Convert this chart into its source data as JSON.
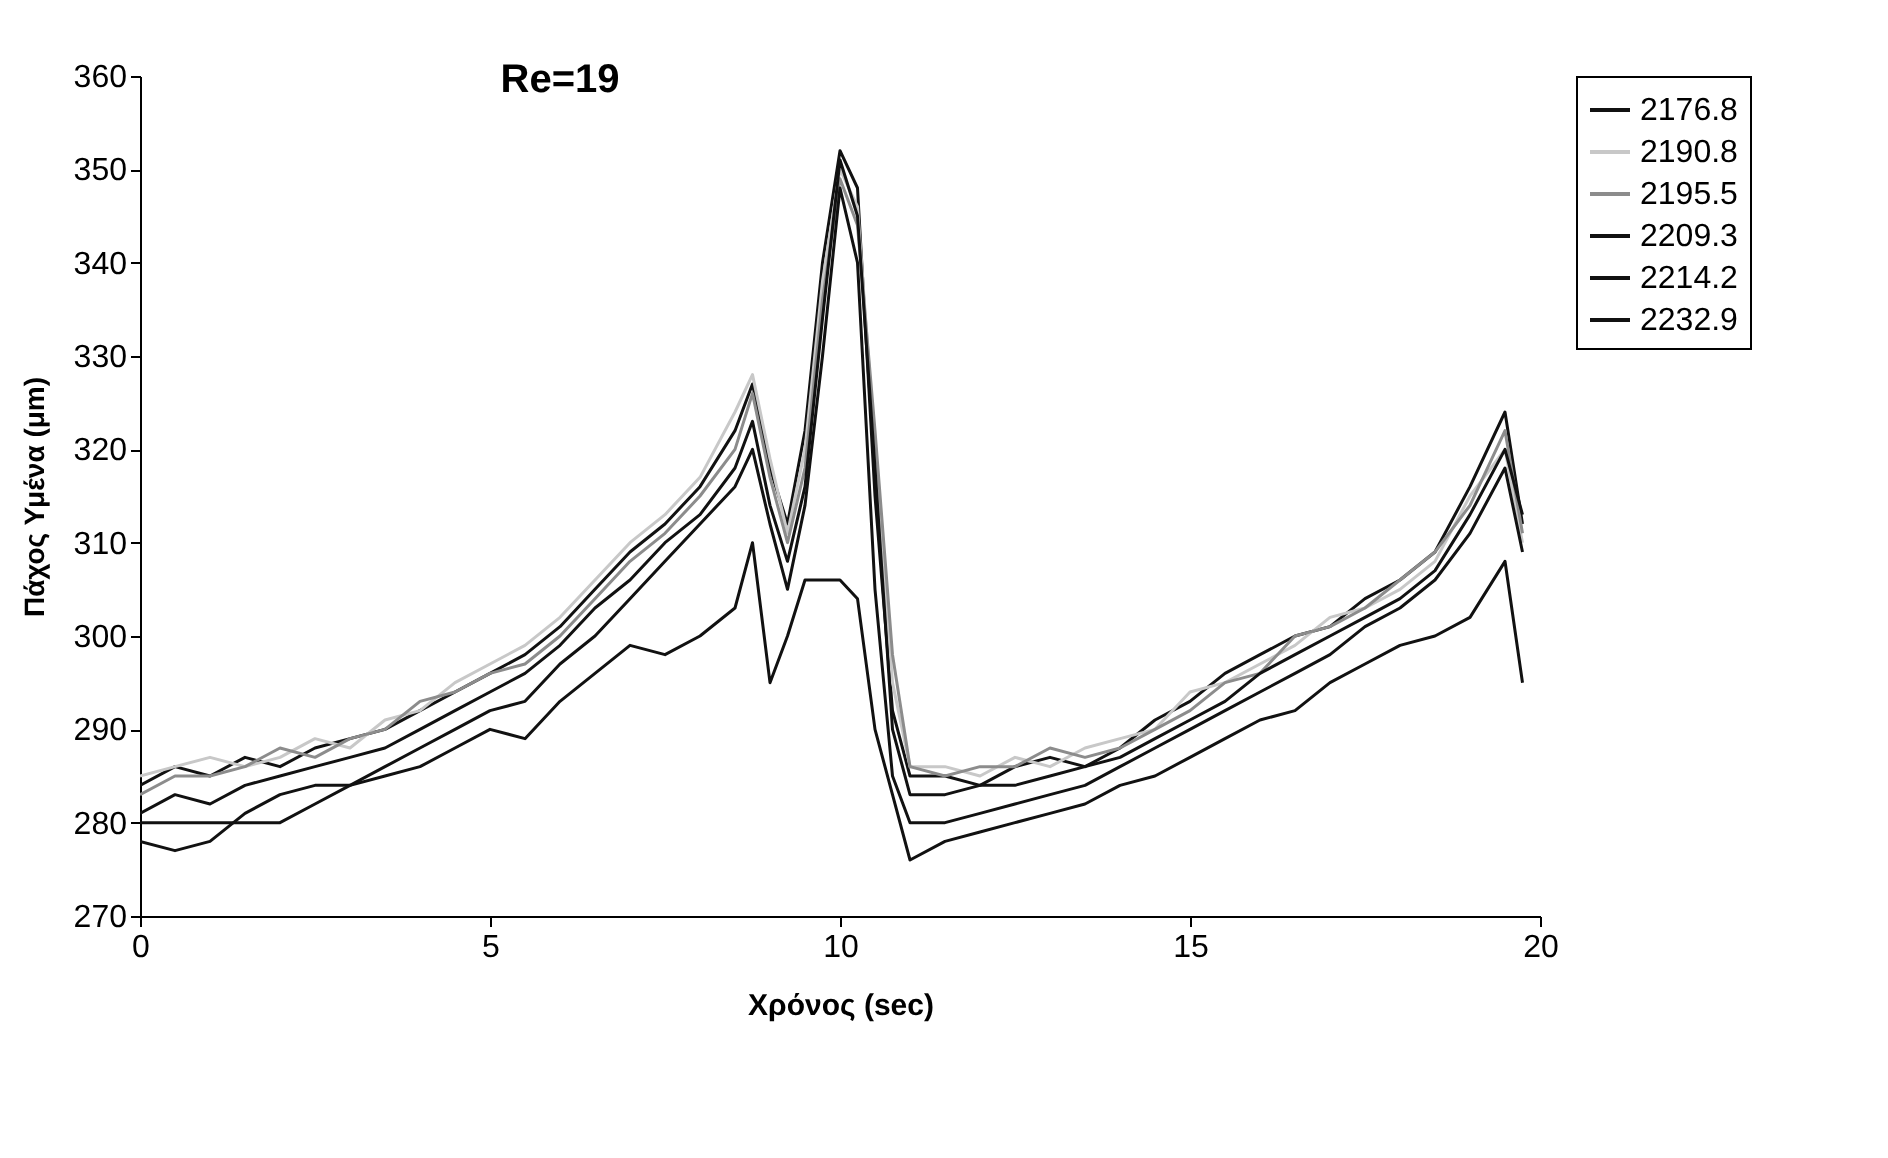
{
  "chart_data": {
    "type": "line",
    "title": "Re=19",
    "xlabel": "Χρόνος (sec)",
    "ylabel": "Πάχος Υμένα (μm)",
    "x": [
      0,
      0.5,
      1,
      1.5,
      2,
      2.5,
      3,
      3.5,
      4,
      4.5,
      5,
      5.5,
      6,
      6.5,
      7,
      7.5,
      8,
      8.5,
      8.75,
      9,
      9.25,
      9.5,
      9.75,
      10,
      10.25,
      10.5,
      10.75,
      11,
      11.5,
      12,
      12.5,
      13,
      13.5,
      14,
      14.5,
      15,
      15.5,
      16,
      16.5,
      17,
      17.5,
      18,
      18.5,
      19,
      19.5,
      19.75
    ],
    "series": [
      {
        "name": "2176.8",
        "color": "#111111",
        "values": [
          284,
          286,
          285,
          287,
          286,
          288,
          289,
          290,
          292,
          294,
          296,
          298,
          301,
          305,
          309,
          312,
          316,
          322,
          327,
          318,
          312,
          322,
          340,
          352,
          348,
          315,
          292,
          285,
          285,
          284,
          286,
          287,
          286,
          288,
          291,
          293,
          296,
          298,
          300,
          301,
          304,
          306,
          309,
          316,
          324,
          312
        ]
      },
      {
        "name": "2190.8",
        "color": "#c8c8c8",
        "values": [
          285,
          286,
          287,
          286,
          287,
          289,
          288,
          291,
          292,
          295,
          297,
          299,
          302,
          306,
          310,
          313,
          317,
          324,
          328,
          319,
          311,
          320,
          338,
          350,
          346,
          320,
          295,
          286,
          286,
          285,
          287,
          286,
          288,
          289,
          290,
          294,
          295,
          297,
          299,
          302,
          303,
          305,
          308,
          315,
          320,
          310
        ]
      },
      {
        "name": "2195.5",
        "color": "#8c8c8c",
        "values": [
          283,
          285,
          285,
          286,
          288,
          287,
          289,
          290,
          293,
          294,
          296,
          297,
          300,
          304,
          308,
          311,
          315,
          320,
          326,
          317,
          310,
          318,
          336,
          349,
          344,
          322,
          298,
          286,
          285,
          286,
          286,
          288,
          287,
          288,
          290,
          292,
          295,
          296,
          300,
          301,
          303,
          306,
          309,
          314,
          322,
          311
        ]
      },
      {
        "name": "2209.3",
        "color": "#111111",
        "values": [
          281,
          283,
          282,
          284,
          285,
          286,
          287,
          288,
          290,
          292,
          294,
          296,
          299,
          303,
          306,
          310,
          313,
          318,
          323,
          314,
          308,
          316,
          334,
          351,
          345,
          318,
          290,
          283,
          283,
          284,
          284,
          285,
          286,
          287,
          289,
          291,
          293,
          296,
          298,
          300,
          302,
          304,
          307,
          313,
          320,
          313
        ]
      },
      {
        "name": "2214.2",
        "color": "#111111",
        "values": [
          280,
          280,
          280,
          280,
          280,
          282,
          284,
          286,
          288,
          290,
          292,
          293,
          297,
          300,
          304,
          308,
          312,
          316,
          320,
          312,
          305,
          314,
          330,
          348,
          340,
          305,
          285,
          280,
          280,
          281,
          282,
          283,
          284,
          286,
          288,
          290,
          292,
          294,
          296,
          298,
          301,
          303,
          306,
          311,
          318,
          309
        ]
      },
      {
        "name": "2232.9",
        "color": "#111111",
        "values": [
          278,
          277,
          278,
          281,
          283,
          284,
          284,
          285,
          286,
          288,
          290,
          289,
          293,
          296,
          299,
          298,
          300,
          303,
          310,
          295,
          300,
          306,
          306,
          306,
          304,
          290,
          283,
          276,
          278,
          279,
          280,
          281,
          282,
          284,
          285,
          287,
          289,
          291,
          292,
          295,
          297,
          299,
          300,
          302,
          308,
          295
        ]
      }
    ],
    "xlim": [
      0,
      20
    ],
    "xticks": [
      0,
      5,
      10,
      15,
      20
    ],
    "ylim": [
      270,
      360
    ],
    "yticks": [
      270,
      280,
      290,
      300,
      310,
      320,
      330,
      340,
      350,
      360
    ],
    "grid": false,
    "legend": "top right",
    "marker": "none",
    "line_style": "solid"
  }
}
